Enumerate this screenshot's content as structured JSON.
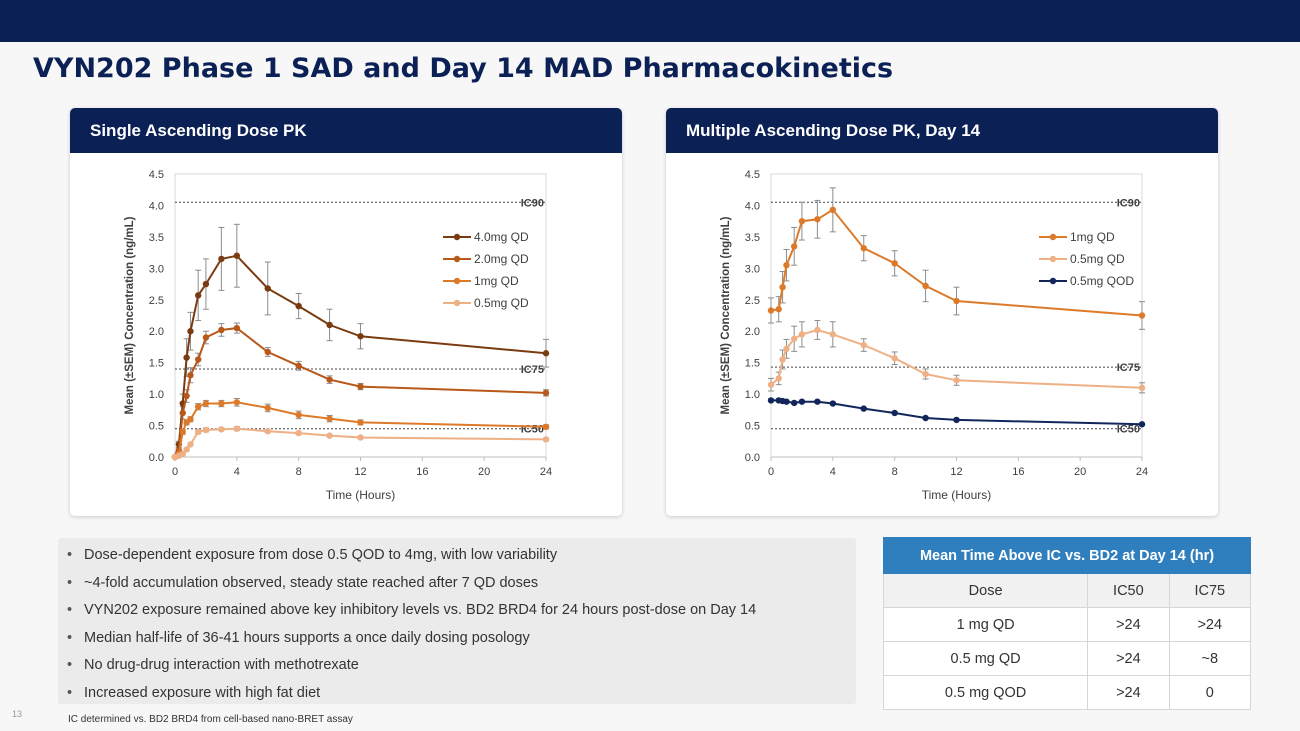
{
  "title": "VYN202 Phase 1 SAD and Day 14 MAD Pharmacokinetics",
  "page_number": "13",
  "footnote": "IC determined vs. BD2 BRD4 from cell-based nano-BRET assay",
  "chart_data": [
    {
      "type": "line",
      "panel_title": "Single Ascending Dose PK",
      "xlabel": "Time (Hours)",
      "ylabel": "Mean (±SEM) Concentration (ng/mL)",
      "xlim": [
        0,
        24
      ],
      "ylim": [
        0,
        4.5
      ],
      "x_ticks": [
        0,
        4,
        8,
        12,
        16,
        20,
        24
      ],
      "y_ticks": [
        "0.0",
        "0.5",
        "1.0",
        "1.5",
        "2.0",
        "2.5",
        "3.0",
        "3.5",
        "4.0",
        "4.5"
      ],
      "legend_position": "top-right",
      "grid": false,
      "reference_lines": [
        {
          "label": "IC90",
          "y": 4.05
        },
        {
          "label": "IC75",
          "y": 1.4
        },
        {
          "label": "IC50",
          "y": 0.45
        }
      ],
      "series": [
        {
          "name": "4.0mg QD",
          "color": "#7a3b12",
          "x": [
            0,
            0.25,
            0.5,
            0.75,
            1,
            1.5,
            2,
            3,
            4,
            6,
            8,
            10,
            12,
            24
          ],
          "y": [
            0,
            0.2,
            0.85,
            1.58,
            2.0,
            2.57,
            2.75,
            3.15,
            3.2,
            2.68,
            2.4,
            2.1,
            1.92,
            1.65
          ],
          "err": [
            0,
            0.05,
            0.15,
            0.3,
            0.3,
            0.4,
            0.4,
            0.5,
            0.5,
            0.42,
            0.2,
            0.25,
            0.2,
            0.22
          ]
        },
        {
          "name": "2.0mg QD",
          "color": "#b8581a",
          "x": [
            0,
            0.25,
            0.5,
            0.75,
            1,
            1.5,
            2,
            3,
            4,
            6,
            8,
            10,
            12,
            24
          ],
          "y": [
            0,
            0.1,
            0.7,
            0.97,
            1.3,
            1.55,
            1.9,
            2.02,
            2.05,
            1.67,
            1.45,
            1.23,
            1.12,
            1.02
          ],
          "err": [
            0,
            0.03,
            0.1,
            0.1,
            0.12,
            0.1,
            0.1,
            0.1,
            0.08,
            0.07,
            0.07,
            0.06,
            0.05,
            0.05
          ]
        },
        {
          "name": "1mg QD",
          "color": "#dd7a2a",
          "x": [
            0,
            0.25,
            0.5,
            0.75,
            1,
            1.5,
            2,
            3,
            4,
            6,
            8,
            10,
            12,
            24
          ],
          "y": [
            0,
            0.05,
            0.4,
            0.55,
            0.6,
            0.8,
            0.85,
            0.85,
            0.87,
            0.78,
            0.67,
            0.61,
            0.55,
            0.48
          ],
          "err": [
            0,
            0.02,
            0.04,
            0.04,
            0.04,
            0.05,
            0.05,
            0.05,
            0.06,
            0.06,
            0.06,
            0.05,
            0.04,
            0.03
          ]
        },
        {
          "name": "0.5mg QD",
          "color": "#efb085",
          "x": [
            0,
            0.25,
            0.5,
            0.75,
            1,
            1.5,
            2,
            3,
            4,
            6,
            8,
            10,
            12,
            24
          ],
          "y": [
            0,
            0.02,
            0.05,
            0.12,
            0.2,
            0.4,
            0.43,
            0.44,
            0.45,
            0.41,
            0.38,
            0.34,
            0.31,
            0.28
          ],
          "err": [
            0,
            0.01,
            0.02,
            0.02,
            0.02,
            0.03,
            0.03,
            0.02,
            0.03,
            0.02,
            0.02,
            0.02,
            0.02,
            0.02
          ]
        }
      ]
    },
    {
      "type": "line",
      "panel_title": "Multiple Ascending Dose PK, Day 14",
      "xlabel": "Time (Hours)",
      "ylabel": "Mean (±SEM) Concentration (ng/mL)",
      "xlim": [
        0,
        24
      ],
      "ylim": [
        0,
        4.5
      ],
      "x_ticks": [
        0,
        4,
        8,
        12,
        16,
        20,
        24
      ],
      "y_ticks": [
        "0.0",
        "0.5",
        "1.0",
        "1.5",
        "2.0",
        "2.5",
        "3.0",
        "3.5",
        "4.0",
        "4.5"
      ],
      "legend_position": "top-right",
      "grid": false,
      "reference_lines": [
        {
          "label": "IC90",
          "y": 4.05
        },
        {
          "label": "IC75",
          "y": 1.43
        },
        {
          "label": "IC50",
          "y": 0.45
        }
      ],
      "series": [
        {
          "name": "1mg QD",
          "color": "#dd7a2a",
          "x": [
            0,
            0.5,
            0.75,
            1,
            1.5,
            2,
            3,
            4,
            6,
            8,
            10,
            12,
            24
          ],
          "y": [
            2.33,
            2.35,
            2.7,
            3.05,
            3.35,
            3.75,
            3.78,
            3.93,
            3.32,
            3.08,
            2.72,
            2.48,
            2.25
          ],
          "err": [
            0.2,
            0.2,
            0.25,
            0.25,
            0.3,
            0.3,
            0.3,
            0.35,
            0.2,
            0.2,
            0.25,
            0.22,
            0.22
          ]
        },
        {
          "name": "0.5mg QD",
          "color": "#efb085",
          "x": [
            0,
            0.5,
            0.75,
            1,
            1.5,
            2,
            3,
            4,
            6,
            8,
            10,
            12,
            24
          ],
          "y": [
            1.15,
            1.25,
            1.55,
            1.72,
            1.88,
            1.95,
            2.02,
            1.95,
            1.78,
            1.57,
            1.32,
            1.22,
            1.1
          ],
          "err": [
            0.1,
            0.1,
            0.15,
            0.15,
            0.2,
            0.2,
            0.15,
            0.2,
            0.1,
            0.1,
            0.08,
            0.08,
            0.08
          ]
        },
        {
          "name": "0.5mg QOD",
          "color": "#12265c",
          "x": [
            0,
            0.5,
            0.75,
            1,
            1.5,
            2,
            3,
            4,
            6,
            8,
            10,
            12,
            24
          ],
          "y": [
            0.9,
            0.9,
            0.89,
            0.88,
            0.86,
            0.88,
            0.88,
            0.85,
            0.77,
            0.7,
            0.62,
            0.59,
            0.52
          ],
          "err": [
            0.02,
            0.02,
            0.02,
            0.02,
            0.02,
            0.02,
            0.02,
            0.02,
            0.02,
            0.02,
            0.02,
            0.02,
            0.02
          ]
        }
      ]
    }
  ],
  "bullets": [
    "Dose-dependent exposure from dose 0.5 QOD to 4mg, with low variability",
    "~4-fold accumulation observed, steady state reached after 7 QD doses",
    "VYN202 exposure remained above key inhibitory levels vs. BD2 BRD4 for 24 hours post-dose on Day 14",
    "Median half-life of 36-41 hours supports a once daily dosing posology",
    "No drug-drug interaction with methotrexate",
    "Increased exposure with high fat diet"
  ],
  "table": {
    "title": "Mean Time Above IC vs. BD2 at Day 14 (hr)",
    "columns": [
      "Dose",
      "IC50",
      "IC75"
    ],
    "rows": [
      [
        "1 mg QD",
        ">24",
        ">24"
      ],
      [
        "0.5 mg QD",
        ">24",
        "~8"
      ],
      [
        "0.5 mg QOD",
        ">24",
        "0"
      ]
    ]
  }
}
